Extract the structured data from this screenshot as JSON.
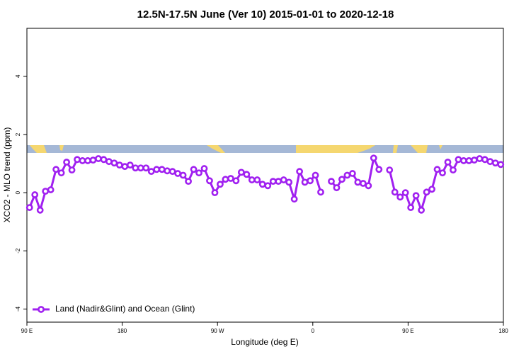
{
  "chart_data": {
    "type": "line",
    "title": "12.5N-17.5N June (Ver 10)   2015-01-01 to 2020-12-18",
    "x_label": "Longitude (deg E)",
    "y_label": "XCO2 - MLO trend (ppm)",
    "xlim": [
      90,
      540
    ],
    "ylim": [
      -4.45,
      5.65
    ],
    "xticks": [
      {
        "value": 90,
        "label": "90 E"
      },
      180,
      {
        "value": 270,
        "label": "90 W"
      },
      {
        "value": 360,
        "label": "0"
      },
      {
        "value": 450,
        "label": "90 E"
      },
      {
        "value": 540,
        "label": "180"
      }
    ],
    "yticks": [
      -4,
      -2,
      0,
      2,
      4
    ],
    "legend": "bottomleft",
    "x": [
      92.5,
      97.5,
      102.5,
      107.5,
      112.5,
      117.5,
      122.5,
      127.5,
      132.5,
      137.5,
      142.5,
      147.5,
      152.5,
      157.5,
      162.5,
      167.5,
      172.5,
      177.5,
      182.5,
      187.5,
      192.5,
      197.5,
      202.5,
      207.5,
      212.5,
      217.5,
      222.5,
      227.5,
      232.5,
      237.5,
      242.5,
      247.5,
      252.5,
      257.5,
      262.5,
      267.5,
      272.5,
      277.5,
      282.5,
      287.5,
      292.5,
      297.5,
      302.5,
      307.5,
      312.5,
      317.5,
      322.5,
      327.5,
      332.5,
      337.5,
      342.5,
      347.5,
      352.5,
      357.5,
      362.5,
      367.5,
      372.5,
      377.5,
      382.5,
      387.5,
      392.5,
      397.5,
      402.5,
      407.5,
      412.5,
      417.5,
      422.5,
      427.5,
      432.5,
      437.5,
      442.5,
      447.5,
      452.5,
      457.5,
      462.5,
      467.5,
      472.5,
      477.5,
      482.5,
      487.5,
      492.5,
      497.5,
      502.5,
      507.5,
      512.5,
      517.5,
      522.5,
      527.5,
      532.5,
      537.5
    ],
    "series": [
      {
        "name": "Land (Nadir&Glint) and Ocean (Glint)",
        "color": "#a020f0",
        "values": [
          -0.51,
          -0.07,
          -0.6,
          0.05,
          0.1,
          0.8,
          0.68,
          1.05,
          0.78,
          1.14,
          1.1,
          1.1,
          1.12,
          1.17,
          1.14,
          1.07,
          1.02,
          0.95,
          0.9,
          0.95,
          0.85,
          0.85,
          0.85,
          0.73,
          0.8,
          0.8,
          0.75,
          0.73,
          0.66,
          0.6,
          0.39,
          0.8,
          0.68,
          0.83,
          0.41,
          0.0,
          0.29,
          0.46,
          0.49,
          0.41,
          0.7,
          0.63,
          0.44,
          0.44,
          0.29,
          0.24,
          0.39,
          0.39,
          0.44,
          0.36,
          -0.22,
          0.73,
          0.36,
          0.41,
          0.6,
          0.02,
          null,
          0.39,
          0.17,
          0.46,
          0.6,
          0.66,
          0.36,
          0.32,
          0.24,
          1.19,
          0.8,
          null,
          0.78,
          0.02,
          -0.15,
          0.0,
          -0.51,
          -0.1,
          -0.6,
          0.02,
          0.12,
          0.8,
          0.68,
          1.05,
          0.78,
          1.14,
          1.1,
          1.1,
          1.12,
          1.17,
          1.14,
          1.07,
          1.02,
          0.97
        ]
      }
    ]
  }
}
